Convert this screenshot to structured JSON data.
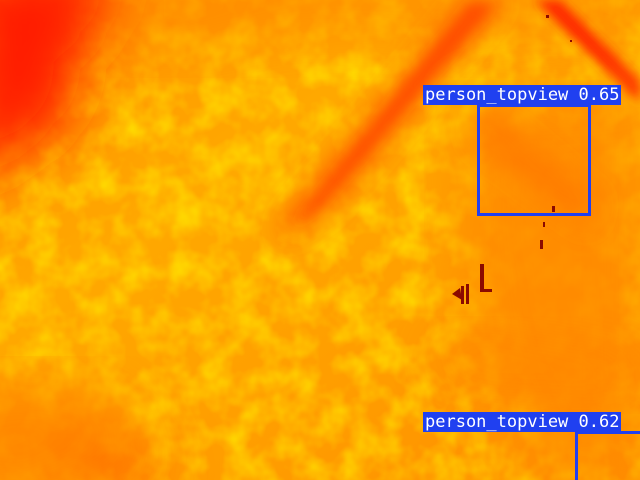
{
  "image": {
    "description_colors": {
      "hot": "#ff2a00",
      "warm": "#ff7a00",
      "mid": "#ffa200",
      "cool": "#ffc400",
      "hotspot": "#8b0a00"
    }
  },
  "detections": [
    {
      "class_name": "person_topview",
      "confidence": "0.65",
      "label": "person_topview 0.65",
      "box_color": "#2040f0"
    },
    {
      "class_name": "person_topview",
      "confidence": "0.62",
      "label": "person_topview 0.62",
      "box_color": "#2040f0"
    }
  ]
}
